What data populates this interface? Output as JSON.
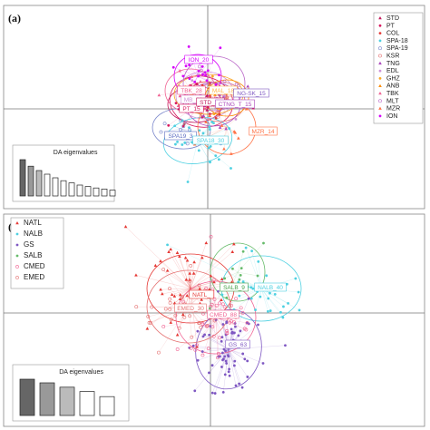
{
  "chart_data": [
    {
      "type": "scatter",
      "panel_label": "(a)",
      "legend": [
        {
          "name": "STD",
          "color": "#c2185b",
          "marker": "triangle"
        },
        {
          "name": "PT",
          "color": "#d81b60",
          "marker": "dot"
        },
        {
          "name": "COL",
          "color": "#e53935",
          "marker": "dot"
        },
        {
          "name": "SPA-18",
          "color": "#4dd0e1",
          "marker": "dot"
        },
        {
          "name": "SPA-19",
          "color": "#7986cb",
          "marker": "circle"
        },
        {
          "name": "KSR",
          "color": "#e57373",
          "marker": "circle"
        },
        {
          "name": "TNG",
          "color": "#ab47bc",
          "marker": "triangle"
        },
        {
          "name": "EDL",
          "color": "#ce93d8",
          "marker": "dot"
        },
        {
          "name": "GHZ",
          "color": "#f9a825",
          "marker": "dot"
        },
        {
          "name": "ANB",
          "color": "#fb8c00",
          "marker": "triangle"
        },
        {
          "name": "TBK",
          "color": "#f06292",
          "marker": "triangle"
        },
        {
          "name": "MLT",
          "color": "#ba68c8",
          "marker": "circle"
        },
        {
          "name": "MZR",
          "color": "#ff7043",
          "marker": "triangle"
        },
        {
          "name": "ION",
          "color": "#d500f9",
          "marker": "dot"
        }
      ],
      "centroid_labels": [
        {
          "text": "ION_20",
          "color": "#d500f9"
        },
        {
          "text": "TBK_28",
          "color": "#f06292"
        },
        {
          "text": "MB_28",
          "color": "#ce93d8"
        },
        {
          "text": "MAL_18",
          "color": "#ffb74d"
        },
        {
          "text": "NG-SK_15",
          "color": "#7e57c2"
        },
        {
          "text": "PT_15",
          "color": "#d81b60"
        },
        {
          "text": "STD_14",
          "color": "#c2185b"
        },
        {
          "text": "CTNG_T_15",
          "color": "#ab47bc"
        },
        {
          "text": "SPA19_3",
          "color": "#5c6bc0"
        },
        {
          "text": "SPA18_30",
          "color": "#4dd0e1"
        },
        {
          "text": "MZR_14",
          "color": "#ff7043"
        }
      ],
      "eigen_title": "DA eigenvalues",
      "eigenvalues": [
        1.0,
        0.82,
        0.7,
        0.6,
        0.5,
        0.42,
        0.36,
        0.3,
        0.26,
        0.22,
        0.19,
        0.16
      ]
    },
    {
      "type": "scatter",
      "panel_label": "(b)",
      "legend": [
        {
          "name": "NATL",
          "color": "#e53935",
          "marker": "triangle"
        },
        {
          "name": "NALB",
          "color": "#4dd0e1",
          "marker": "dot"
        },
        {
          "name": "GS",
          "color": "#7e57c2",
          "marker": "dot"
        },
        {
          "name": "SALB",
          "color": "#66bb6a",
          "marker": "dot"
        },
        {
          "name": "CMED",
          "color": "#f06292",
          "marker": "circle"
        },
        {
          "name": "EMED",
          "color": "#e57373",
          "marker": "circle"
        }
      ],
      "centroid_labels": [
        {
          "text": "SALB_9",
          "color": "#43a047"
        },
        {
          "text": "NALB_40",
          "color": "#4dd0e1"
        },
        {
          "text": "NATL_",
          "color": "#e53935"
        },
        {
          "text": "EMED_30",
          "color": "#e57373"
        },
        {
          "text": "CMED_88",
          "color": "#f06292"
        },
        {
          "text": "GS_63",
          "color": "#7e57c2"
        }
      ],
      "eigen_title": "DA eigenvalues",
      "eigenvalues": [
        1.0,
        0.9,
        0.78,
        0.66,
        0.52
      ]
    }
  ]
}
